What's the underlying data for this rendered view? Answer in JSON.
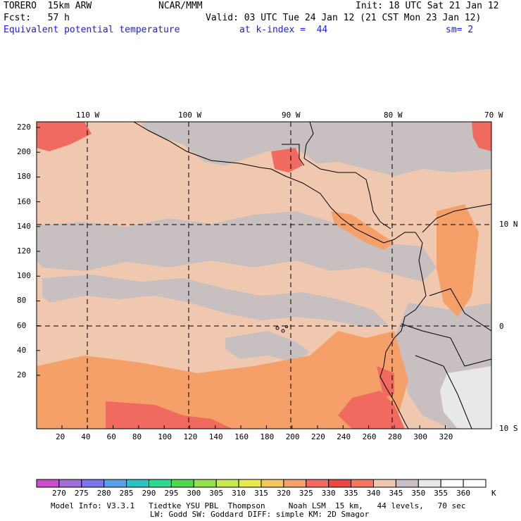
{
  "header": {
    "model": "TORERO  15km ARW",
    "org": "NCAR/MMM",
    "init": "Init: 18 UTC Sat 21 Jan 12",
    "fcst": "Fcst:   57 h",
    "valid": "Valid: 03 UTC Tue 24 Jan 12 (21 CST Mon 23 Jan 12)",
    "field": "Equivalent potential temperature",
    "level": "at k-index =  44",
    "smooth": "sm= 2"
  },
  "map": {
    "lon_labels": [
      "110 W",
      "100 W",
      "90 W",
      "80 W",
      "70 W"
    ],
    "lat_labels": [
      "10 N",
      "0",
      "10 S"
    ],
    "y_ticks": [
      "220",
      "200",
      "180",
      "160",
      "140",
      "120",
      "100",
      "80",
      "60",
      "40",
      "20"
    ],
    "x_ticks": [
      "20",
      "40",
      "60",
      "80",
      "100",
      "120",
      "140",
      "160",
      "180",
      "200",
      "220",
      "240",
      "260",
      "280",
      "300",
      "320"
    ]
  },
  "colorbar": {
    "labels": [
      "270",
      "275",
      "280",
      "285",
      "290",
      "295",
      "300",
      "305",
      "310",
      "315",
      "320",
      "325",
      "330",
      "335",
      "340",
      "345",
      "350",
      "355",
      "360"
    ],
    "unit": "K",
    "colors": [
      "#c850c8",
      "#a070d8",
      "#7878e8",
      "#5aa0e8",
      "#30c0c0",
      "#30d890",
      "#50d850",
      "#90e050",
      "#c8e850",
      "#e8e850",
      "#f0c860",
      "#f4a068",
      "#f06a60",
      "#e84848",
      "#f47860",
      "#f0c8b0",
      "#c8c0c0",
      "#e8e8e8",
      "#ffffff",
      "#ffffff"
    ]
  },
  "footer": {
    "line1": "Model Info: V3.3.1   Tiedtke YSU PBL  Thompson     Noah LSM  15 km,   44 levels,   70 sec",
    "line2": "LW: Godd SW: Goddard DIFF: simple KM: 2D Smagor"
  }
}
